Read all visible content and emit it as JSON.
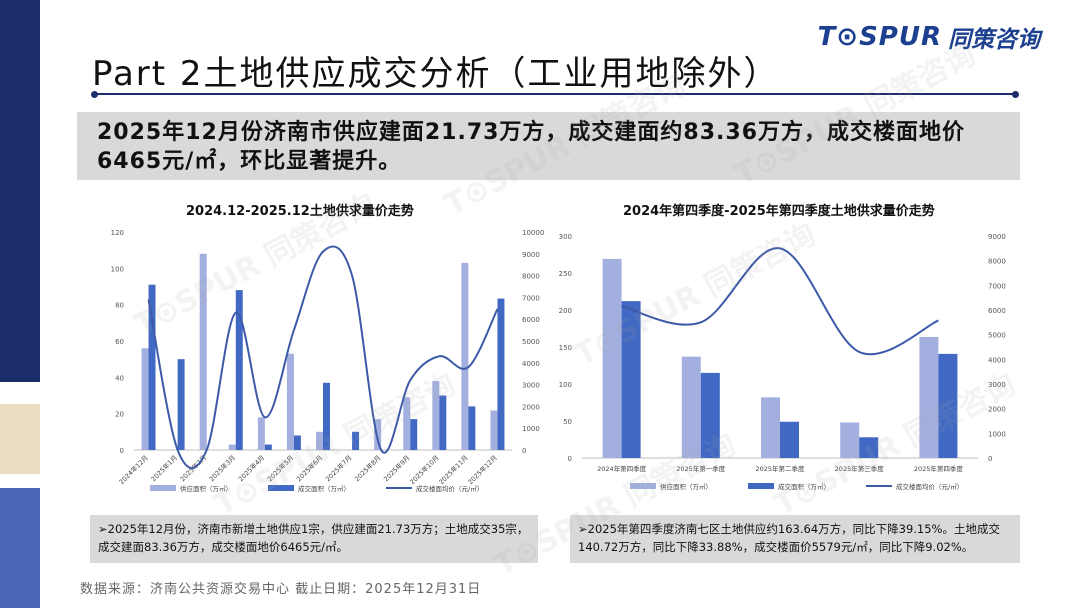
{
  "brand": {
    "logo_en": "T⊙SPUR",
    "logo_cn": "同策咨询",
    "watermark": "T⊙SPUR 同策咨询"
  },
  "page": {
    "title": "Part 2土地供应成交分析（工业用地除外）",
    "headline": "2025年12月份济南市供应建面21.73万方，成交建面约83.36万方，成交楼面地价6465元/㎡，环比显著提升。",
    "source": "数据来源：济南公共资源交易中心   截止日期：2025年12月31日"
  },
  "colors": {
    "navy": "#1c2d6b",
    "supply": "#a3b0df",
    "deal": "#4169c4",
    "line": "#3d5aa8",
    "note_bg": "#d9d9d9"
  },
  "chart_data": [
    {
      "type": "bar",
      "title": "2024.12-2025.12土地供求量价走势",
      "categories": [
        "2024年12月",
        "2025年1月",
        "2025年2月",
        "2025年3月",
        "2025年4月",
        "2025年5月",
        "2025年6月",
        "2025年7月",
        "2025年8月",
        "2025年9月",
        "2025年10月",
        "2025年11月",
        "2025年12月"
      ],
      "series": [
        {
          "name": "供应面积（万㎡）",
          "type": "bar",
          "axis": "left",
          "values": [
            56,
            0,
            108,
            3,
            18,
            53,
            10,
            0,
            17,
            29,
            38,
            103,
            21.73
          ]
        },
        {
          "name": "成交面积（万㎡）",
          "type": "bar",
          "axis": "left",
          "values": [
            91,
            50,
            0,
            88,
            3,
            8,
            37,
            10,
            0,
            17,
            30,
            24,
            83.36
          ]
        },
        {
          "name": "成交楼面均价（元/㎡）",
          "type": "line",
          "axis": "right",
          "values": [
            6900,
            0,
            0,
            6300,
            1500,
            5500,
            9100,
            8000,
            0,
            3200,
            4300,
            3800,
            6465
          ]
        }
      ],
      "ylim": [
        0,
        120
      ],
      "yticks": [
        0,
        20,
        40,
        60,
        80,
        100,
        120
      ],
      "y2lim": [
        0,
        10000
      ],
      "y2ticks": [
        0,
        1000,
        2000,
        3000,
        4000,
        5000,
        6000,
        7000,
        8000,
        9000,
        10000
      ],
      "legend_position": "bottom",
      "grid": false
    },
    {
      "type": "bar",
      "title": "2024年第四季度-2025年第四季度土地供求量价走势",
      "categories": [
        "2024年第四季度",
        "2025年第一季度",
        "2025年第二季度",
        "2025年第三季度",
        "2025年第四季度"
      ],
      "series": [
        {
          "name": "供应面积（万㎡）",
          "type": "bar",
          "axis": "left",
          "values": [
            269,
            137,
            82,
            48,
            163.64
          ]
        },
        {
          "name": "成交面积（万㎡）",
          "type": "bar",
          "axis": "left",
          "values": [
            212,
            115,
            49,
            28,
            140.72
          ]
        },
        {
          "name": "成交楼面均价（元/㎡）",
          "type": "line",
          "axis": "right",
          "values": [
            6150,
            5500,
            8500,
            4300,
            5579
          ]
        }
      ],
      "ylim": [
        0,
        300
      ],
      "yticks": [
        0,
        50,
        100,
        150,
        200,
        250,
        300
      ],
      "y2lim": [
        0,
        9000
      ],
      "y2ticks": [
        0,
        1000,
        2000,
        3000,
        4000,
        5000,
        6000,
        7000,
        8000,
        9000
      ],
      "legend_position": "bottom",
      "grid": false
    }
  ],
  "notes": {
    "left": "➢2025年12月份，济南市新增土地供应1宗，供应建面21.73万方；土地成交35宗，成交建面83.36万方，成交楼面地价6465元/㎡。",
    "right": "➢2025年第四季度济南七区土地供应约163.64万方，同比下降39.15%。土地成交140.72万方，同比下降33.88%，成交楼面价5579元/㎡，同比下降9.02%。"
  }
}
